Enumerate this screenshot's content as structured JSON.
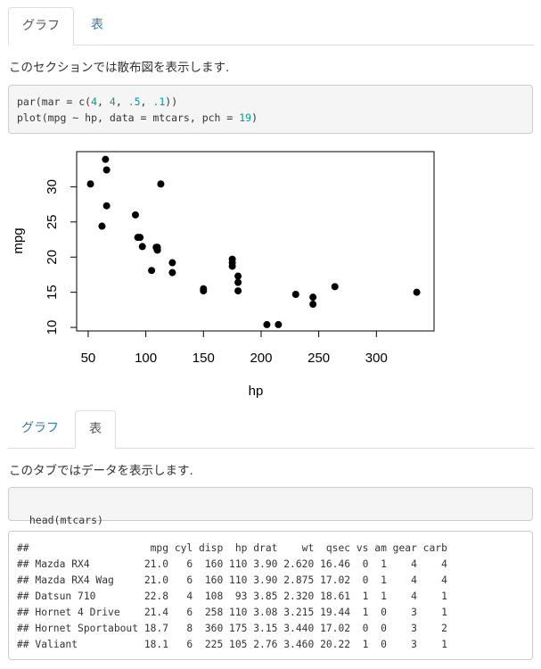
{
  "tabs_top": [
    {
      "label": "グラフ",
      "active": true
    },
    {
      "label": "表",
      "active": false
    }
  ],
  "section1": {
    "text": "このセクションでは散布図を表示します.",
    "code_lines": [
      [
        {
          "t": "par(mar = c("
        },
        {
          "t": "4",
          "n": 1
        },
        {
          "t": ", "
        },
        {
          "t": "4",
          "n": 1
        },
        {
          "t": ", "
        },
        {
          "t": ".5",
          "n": 1
        },
        {
          "t": ", "
        },
        {
          "t": ".1",
          "n": 1
        },
        {
          "t": "))"
        }
      ],
      [
        {
          "t": "plot(mpg ~ hp, data = mtcars, pch = "
        },
        {
          "t": "19",
          "n": 1
        },
        {
          "t": ")"
        }
      ]
    ]
  },
  "chart_data": {
    "type": "scatter",
    "xlabel": "hp",
    "ylabel": "mpg",
    "xlim": [
      40,
      350
    ],
    "ylim": [
      9.5,
      35
    ],
    "xticks": [
      50,
      100,
      150,
      200,
      250,
      300
    ],
    "yticks": [
      10,
      15,
      20,
      25,
      30
    ],
    "marker_color": "#000000",
    "points": [
      [
        110,
        21.0
      ],
      [
        110,
        21.0
      ],
      [
        93,
        22.8
      ],
      [
        110,
        21.4
      ],
      [
        175,
        18.7
      ],
      [
        105,
        18.1
      ],
      [
        245,
        14.3
      ],
      [
        62,
        24.4
      ],
      [
        95,
        22.8
      ],
      [
        123,
        19.2
      ],
      [
        123,
        17.8
      ],
      [
        180,
        16.4
      ],
      [
        180,
        17.3
      ],
      [
        180,
        15.2
      ],
      [
        205,
        10.4
      ],
      [
        215,
        10.4
      ],
      [
        230,
        14.7
      ],
      [
        66,
        32.4
      ],
      [
        52,
        30.4
      ],
      [
        65,
        33.9
      ],
      [
        97,
        21.5
      ],
      [
        150,
        15.5
      ],
      [
        150,
        15.2
      ],
      [
        245,
        13.3
      ],
      [
        175,
        19.2
      ],
      [
        66,
        27.3
      ],
      [
        91,
        26.0
      ],
      [
        113,
        30.4
      ],
      [
        264,
        15.8
      ],
      [
        175,
        19.7
      ],
      [
        335,
        15.0
      ],
      [
        109,
        21.4
      ]
    ]
  },
  "tabs_bottom": [
    {
      "label": "グラフ",
      "active": false
    },
    {
      "label": "表",
      "active": true
    }
  ],
  "section2": {
    "text": "このタブではデータを表示します.",
    "code": "head(mtcars)",
    "output_lines": [
      "##                    mpg cyl disp  hp drat    wt  qsec vs am gear carb",
      "## Mazda RX4         21.0   6  160 110 3.90 2.620 16.46  0  1    4    4",
      "## Mazda RX4 Wag     21.0   6  160 110 3.90 2.875 17.02  0  1    4    4",
      "## Datsun 710        22.8   4  108  93 3.85 2.320 18.61  1  1    4    1",
      "## Hornet 4 Drive    21.4   6  258 110 3.08 3.215 19.44  1  0    3    1",
      "## Hornet Sportabout 18.7   8  360 175 3.15 3.440 17.02  0  0    3    2",
      "## Valiant           18.1   6  225 105 2.76 3.460 20.22  1  0    3    1"
    ]
  }
}
